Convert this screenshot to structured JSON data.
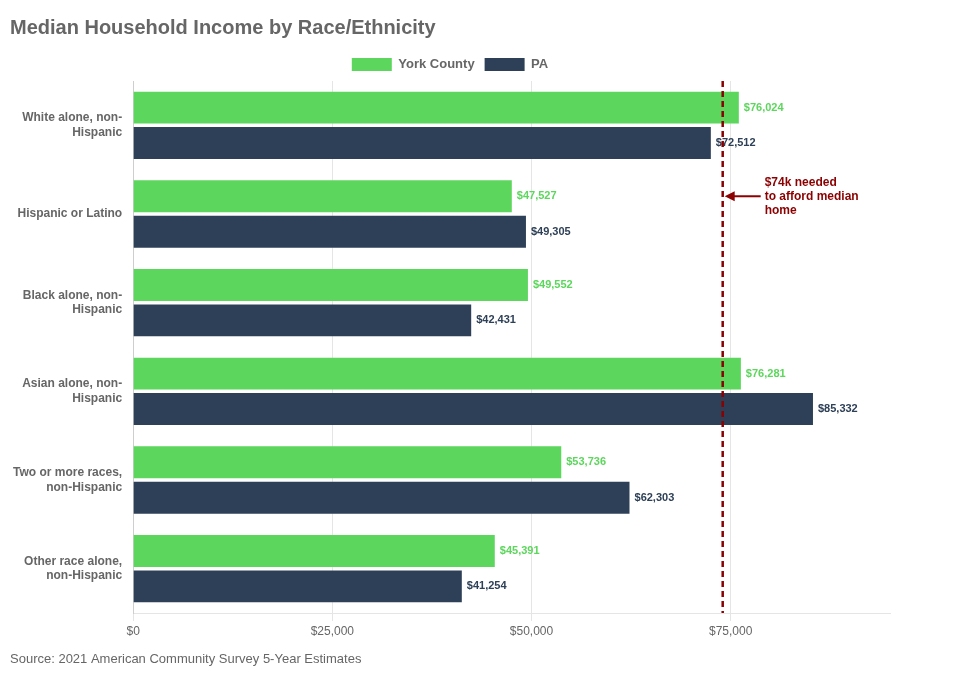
{
  "chart_data": {
    "type": "bar",
    "orientation": "horizontal",
    "title": "Median Household Income by Race/Ethnicity",
    "categories": [
      "White alone, non-\nHispanic",
      "Hispanic or Latino",
      "Black alone, non-\nHispanic",
      "Asian alone, non-\nHispanic",
      "Two or more races,\nnon-Hispanic",
      "Other race alone,\nnon-Hispanic"
    ],
    "series": [
      {
        "name": "York County",
        "color": "#5cd65c",
        "values": [
          76024,
          47527,
          49552,
          76281,
          53736,
          45391
        ],
        "value_labels": [
          "$76,024",
          "$47,527",
          "$49,552",
          "$76,281",
          "$53,736",
          "$45,391"
        ]
      },
      {
        "name": "PA",
        "color": "#2e4057",
        "values": [
          72512,
          49305,
          42431,
          85332,
          62303,
          41254
        ],
        "value_labels": [
          "$72,512",
          "$49,305",
          "$42,431",
          "$85,332",
          "$62,303",
          "$41,254"
        ]
      }
    ],
    "xlim": [
      0,
      95000
    ],
    "xticks": [
      {
        "value": 0,
        "label": "$0"
      },
      {
        "value": 25000,
        "label": "$25,000"
      },
      {
        "value": 50000,
        "label": "$50,000"
      },
      {
        "value": 75000,
        "label": "$75,000"
      }
    ],
    "grid": true,
    "legend": "top",
    "data_labels": true,
    "annotations": [
      {
        "x": 74000,
        "category": "Hispanic or Latino",
        "text": "$74k needed\nto afford median\nhome",
        "color": "#8b0000",
        "line_style": "dashed"
      }
    ],
    "source": "Source: 2021 American Community Survey 5-Year Estimates"
  }
}
